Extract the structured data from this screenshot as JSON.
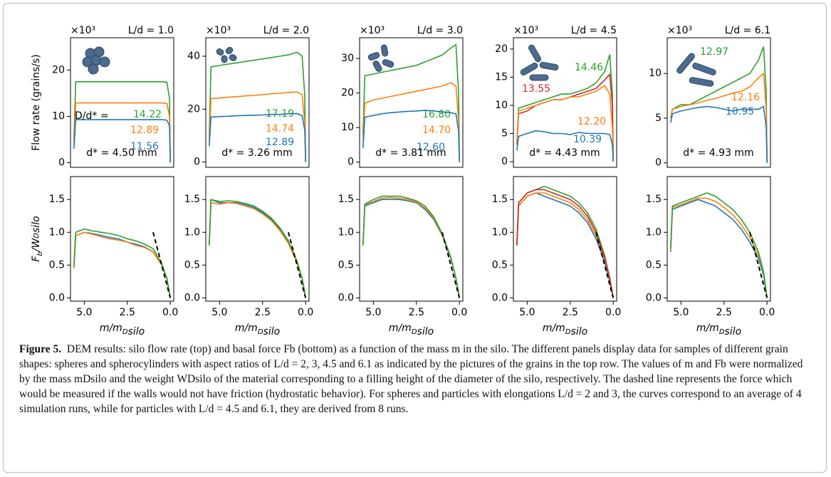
{
  "chart_data": [
    {
      "type": "line",
      "title": "L/d = 1.0",
      "scale_note": "×10³",
      "ylabel": [
        "Flow rate (grains/s)"
      ],
      "x": [
        5.6,
        5.5,
        5.0,
        4.5,
        4.0,
        3.5,
        3.0,
        2.5,
        2.0,
        1.5,
        1.0,
        0.5,
        0.2,
        0.05,
        0
      ],
      "xlim": [
        5.8,
        -0.2
      ],
      "ylim": [
        -1,
        27
      ],
      "yticks": [
        0,
        10,
        20
      ],
      "series": [
        {
          "color": "#2ca02c",
          "label": "14.22",
          "values": [
            5,
            17.5,
            17.5,
            17.5,
            17.5,
            17.5,
            17.5,
            17.5,
            17.5,
            17.5,
            17.5,
            17.5,
            17.4,
            14,
            0
          ]
        },
        {
          "color": "#ff7f0e",
          "label": "12.89",
          "values": [
            4,
            12.9,
            12.9,
            12.9,
            12.9,
            12.9,
            12.9,
            12.9,
            12.9,
            12.9,
            12.9,
            12.9,
            12.8,
            10,
            0
          ]
        },
        {
          "color": "#1f77b4",
          "label": "11.56",
          "values": [
            3,
            9.3,
            9.3,
            9.3,
            9.3,
            9.3,
            9.3,
            9.3,
            9.3,
            9.3,
            9.3,
            9.3,
            9.2,
            8,
            0
          ]
        }
      ],
      "annotations": [
        "D/d* =",
        "d* = 4.50 mm"
      ]
    },
    {
      "type": "line",
      "title": "L/d = 2.0",
      "scale_note": "×10³",
      "x": [
        5.6,
        5.5,
        5.0,
        4.5,
        4.0,
        3.5,
        3.0,
        2.5,
        2.0,
        1.5,
        1.0,
        0.5,
        0.2,
        0.05,
        0
      ],
      "xlim": [
        5.8,
        -0.2
      ],
      "ylim": [
        -2,
        47
      ],
      "yticks": [
        0,
        20,
        40
      ],
      "series": [
        {
          "color": "#2ca02c",
          "label": "17.19",
          "values": [
            10,
            36,
            36.5,
            37,
            37.5,
            38,
            38.5,
            39,
            39.5,
            40,
            40.5,
            41.5,
            40,
            25,
            0
          ]
        },
        {
          "color": "#ff7f0e",
          "label": "14.74",
          "values": [
            8,
            24,
            24.2,
            24.5,
            24.7,
            25,
            25.2,
            25.5,
            25.8,
            26,
            26.3,
            26.5,
            25.5,
            15,
            0
          ]
        },
        {
          "color": "#1f77b4",
          "label": "12.89",
          "values": [
            6,
            17,
            17.2,
            17.3,
            17.5,
            17.6,
            17.7,
            17.8,
            18,
            18,
            18.2,
            18.3,
            17.5,
            12,
            0
          ]
        }
      ],
      "annotations": [
        "d* = 3.26 mm"
      ]
    },
    {
      "type": "line",
      "title": "L/d = 3.0",
      "scale_note": "×10³",
      "x": [
        5.6,
        5.5,
        5.0,
        4.5,
        4.0,
        3.5,
        3.0,
        2.5,
        2.0,
        1.5,
        1.0,
        0.5,
        0.2,
        0.05,
        0
      ],
      "xlim": [
        5.8,
        -0.2
      ],
      "ylim": [
        -1.5,
        36
      ],
      "yticks": [
        0,
        10,
        20,
        30
      ],
      "series": [
        {
          "color": "#2ca02c",
          "label": "16.80",
          "values": [
            8,
            25,
            25.5,
            26,
            26.5,
            27,
            27.5,
            28,
            29,
            30,
            31,
            33,
            34,
            20,
            0
          ]
        },
        {
          "color": "#ff7f0e",
          "label": "14.70",
          "values": [
            6,
            17,
            18,
            18.5,
            19,
            19.5,
            20,
            20.5,
            21,
            21.5,
            22,
            23,
            22,
            12,
            0
          ]
        },
        {
          "color": "#1f77b4",
          "label": "12.60",
          "values": [
            4,
            13,
            13.5,
            14,
            14.3,
            14.5,
            14.7,
            14.8,
            15,
            14.8,
            14.5,
            14.3,
            14,
            9,
            0
          ]
        }
      ],
      "annotations": [
        "d* = 3.81 mm"
      ]
    },
    {
      "type": "line",
      "title": "L/d = 4.5",
      "scale_note": "×10³",
      "x": [
        5.6,
        5.5,
        5.0,
        4.5,
        4.0,
        3.5,
        3.0,
        2.5,
        2.0,
        1.5,
        1.0,
        0.5,
        0.2,
        0.05,
        0
      ],
      "xlim": [
        5.8,
        -0.2
      ],
      "ylim": [
        -1,
        22
      ],
      "yticks": [
        0,
        5,
        10,
        15,
        20
      ],
      "series": [
        {
          "color": "#2ca02c",
          "label": "14.46",
          "values": [
            3,
            9.5,
            10,
            10.5,
            11,
            11.5,
            12,
            12,
            12.5,
            13,
            14,
            16,
            19,
            12,
            0
          ]
        },
        {
          "color": "#d62728",
          "label": "13.55",
          "values": [
            3,
            8.5,
            9,
            10,
            10.5,
            11,
            11,
            11.5,
            12,
            12.5,
            13,
            14.5,
            15.5,
            10,
            0
          ]
        },
        {
          "color": "#ff7f0e",
          "label": "12.20",
          "values": [
            3,
            9,
            9.5,
            10,
            10.5,
            11,
            11,
            11.5,
            11.5,
            12,
            12.5,
            13.5,
            12,
            6,
            0
          ]
        },
        {
          "color": "#1f77b4",
          "label": "10.39",
          "values": [
            2,
            4.5,
            5,
            5.5,
            5.3,
            5,
            5,
            4.8,
            5.2,
            5,
            5,
            5,
            4.8,
            3,
            0
          ]
        }
      ],
      "annotations": [
        "d* = 4.43 mm"
      ]
    },
    {
      "type": "line",
      "title": "L/d = 6.1",
      "scale_note": "×10³",
      "x": [
        5.6,
        5.5,
        5.0,
        4.5,
        4.0,
        3.5,
        3.0,
        2.5,
        2.0,
        1.5,
        1.0,
        0.5,
        0.2,
        0.05,
        0
      ],
      "xlim": [
        5.8,
        -0.2
      ],
      "ylim": [
        -0.5,
        14
      ],
      "yticks": [
        0,
        5,
        10
      ],
      "series": [
        {
          "color": "#2ca02c",
          "label": "12.97",
          "values": [
            5,
            6,
            6.5,
            6.5,
            7,
            7.5,
            8,
            8.5,
            9,
            9.5,
            10,
            11.5,
            13,
            8,
            0
          ]
        },
        {
          "color": "#ff7f0e",
          "label": "12.16",
          "values": [
            5,
            6,
            6.3,
            6.5,
            6.7,
            7,
            7.2,
            7.5,
            7.8,
            8,
            8.5,
            9.5,
            10,
            6,
            0
          ]
        },
        {
          "color": "#1f77b4",
          "label": "10.95",
          "values": [
            4.5,
            5.5,
            5.8,
            6,
            6.2,
            6.3,
            6.2,
            6,
            5.8,
            6,
            6,
            6,
            6.3,
            4,
            0
          ]
        }
      ],
      "annotations": [
        "d* = 4.93 mm"
      ]
    },
    {
      "type": "line",
      "ylabel": [
        "F",
        "b",
        "/W",
        "D",
        "silo"
      ],
      "xlabel": [
        "m/m",
        "D",
        "silo"
      ],
      "x": [
        5.6,
        5.5,
        5.0,
        4.5,
        4.0,
        3.5,
        3.0,
        2.5,
        2.0,
        1.5,
        1.0,
        0.5,
        0.2,
        0
      ],
      "xlim": [
        5.8,
        -0.2
      ],
      "xticks": [
        {
          "value": 5.0,
          "label": "5.0"
        },
        2.5,
        {
          "value": 0,
          "label": "0.0"
        }
      ],
      "ylim": [
        -0.05,
        1.85
      ],
      "yticks": [
        {
          "value": 0,
          "label": "0.0"
        },
        0.5,
        {
          "value": 1,
          "label": "1.0"
        },
        1.5
      ],
      "hydrostatic": {
        "x": [
          1,
          0
        ],
        "y": [
          1,
          0
        ]
      },
      "series": [
        {
          "color": "#1f77b4",
          "values": [
            0.45,
            0.95,
            1.0,
            0.98,
            0.95,
            0.92,
            0.9,
            0.85,
            0.82,
            0.78,
            0.7,
            0.5,
            0.3,
            0
          ]
        },
        {
          "color": "#ff7f0e",
          "values": [
            0.45,
            0.95,
            1.0,
            0.97,
            0.93,
            0.9,
            0.88,
            0.85,
            0.8,
            0.77,
            0.7,
            0.5,
            0.3,
            0
          ]
        },
        {
          "color": "#2ca02c",
          "values": [
            0.5,
            1.0,
            1.05,
            1.02,
            1.0,
            0.98,
            0.95,
            0.9,
            0.87,
            0.82,
            0.75,
            0.52,
            0.3,
            0
          ]
        }
      ]
    },
    {
      "type": "line",
      "xlabel": [
        "m/m",
        "D",
        "silo"
      ],
      "x": [
        5.6,
        5.5,
        5.0,
        4.5,
        4.0,
        3.5,
        3.0,
        2.5,
        2.0,
        1.5,
        1.0,
        0.5,
        0.2,
        0
      ],
      "xlim": [
        5.8,
        -0.2
      ],
      "xticks": [
        {
          "value": 5.0,
          "label": "5.0"
        },
        2.5,
        {
          "value": 0,
          "label": "0.0"
        }
      ],
      "ylim": [
        -0.05,
        1.85
      ],
      "yticks": [
        {
          "value": 0,
          "label": "0.0"
        },
        0.5,
        {
          "value": 1,
          "label": "1.0"
        },
        1.5
      ],
      "hydrostatic": {
        "x": [
          1,
          0
        ],
        "y": [
          1,
          0
        ]
      },
      "series": [
        {
          "color": "#1f77b4",
          "values": [
            0.8,
            1.5,
            1.45,
            1.45,
            1.45,
            1.42,
            1.38,
            1.3,
            1.2,
            1.05,
            0.85,
            0.55,
            0.3,
            0
          ]
        },
        {
          "color": "#ff7f0e",
          "values": [
            0.8,
            1.45,
            1.43,
            1.45,
            1.44,
            1.4,
            1.36,
            1.28,
            1.18,
            1.03,
            0.83,
            0.54,
            0.3,
            0
          ]
        },
        {
          "color": "#2ca02c",
          "values": [
            0.8,
            1.5,
            1.47,
            1.48,
            1.47,
            1.44,
            1.4,
            1.32,
            1.22,
            1.07,
            0.87,
            0.56,
            0.3,
            0
          ]
        }
      ]
    },
    {
      "type": "line",
      "xlabel": [
        "m/m",
        "D",
        "silo"
      ],
      "x": [
        5.6,
        5.5,
        5.0,
        4.5,
        4.0,
        3.5,
        3.0,
        2.5,
        2.0,
        1.5,
        1.0,
        0.5,
        0.2,
        0
      ],
      "xlim": [
        5.8,
        -0.2
      ],
      "xticks": [
        {
          "value": 5.0,
          "label": "5.0"
        },
        2.5,
        {
          "value": 0,
          "label": "0.0"
        }
      ],
      "ylim": [
        -0.05,
        1.85
      ],
      "yticks": [
        {
          "value": 0,
          "label": "0.0"
        },
        0.5,
        {
          "value": 1,
          "label": "1.0"
        },
        1.5
      ],
      "hydrostatic": {
        "x": [
          1,
          0
        ],
        "y": [
          1,
          0
        ]
      },
      "series": [
        {
          "color": "#1f77b4",
          "values": [
            0.8,
            1.4,
            1.45,
            1.5,
            1.5,
            1.5,
            1.48,
            1.45,
            1.35,
            1.2,
            0.95,
            0.6,
            0.3,
            0
          ]
        },
        {
          "color": "#ff7f0e",
          "values": [
            0.8,
            1.42,
            1.47,
            1.52,
            1.53,
            1.52,
            1.5,
            1.46,
            1.37,
            1.22,
            0.96,
            0.61,
            0.3,
            0
          ]
        },
        {
          "color": "#2ca02c",
          "values": [
            0.8,
            1.43,
            1.5,
            1.55,
            1.55,
            1.55,
            1.52,
            1.48,
            1.4,
            1.24,
            0.98,
            0.62,
            0.3,
            0
          ]
        }
      ]
    },
    {
      "type": "line",
      "xlabel": [
        "m/m",
        "D",
        "silo"
      ],
      "x": [
        5.6,
        5.5,
        5.0,
        4.5,
        4.0,
        3.5,
        3.0,
        2.5,
        2.0,
        1.5,
        1.0,
        0.5,
        0.2,
        0
      ],
      "xlim": [
        5.8,
        -0.2
      ],
      "xticks": [
        {
          "value": 5.0,
          "label": "5.0"
        },
        2.5,
        {
          "value": 0,
          "label": "0.0"
        }
      ],
      "ylim": [
        -0.05,
        1.85
      ],
      "yticks": [
        {
          "value": 0,
          "label": "0.0"
        },
        0.5,
        {
          "value": 1,
          "label": "1.0"
        },
        1.5
      ],
      "hydrostatic": {
        "x": [
          1,
          0
        ],
        "y": [
          1,
          0
        ]
      },
      "series": [
        {
          "color": "#1f77b4",
          "values": [
            0.8,
            1.4,
            1.55,
            1.6,
            1.55,
            1.5,
            1.45,
            1.4,
            1.3,
            1.15,
            0.9,
            0.55,
            0.25,
            0
          ]
        },
        {
          "color": "#ff7f0e",
          "values": [
            0.8,
            1.4,
            1.55,
            1.6,
            1.6,
            1.55,
            1.5,
            1.45,
            1.35,
            1.2,
            0.95,
            0.6,
            0.3,
            0
          ]
        },
        {
          "color": "#2ca02c",
          "values": [
            0.8,
            1.45,
            1.6,
            1.65,
            1.7,
            1.65,
            1.6,
            1.55,
            1.45,
            1.3,
            1.05,
            0.65,
            0.3,
            0
          ]
        },
        {
          "color": "#d62728",
          "values": [
            0.8,
            1.45,
            1.6,
            1.65,
            1.65,
            1.6,
            1.55,
            1.5,
            1.4,
            1.25,
            1.0,
            0.62,
            0.3,
            0
          ]
        }
      ]
    },
    {
      "type": "line",
      "xlabel": [
        "m/m",
        "D",
        "silo"
      ],
      "x": [
        5.6,
        5.5,
        5.0,
        4.5,
        4.0,
        3.5,
        3.0,
        2.5,
        2.0,
        1.5,
        1.0,
        0.5,
        0.2,
        0
      ],
      "xlim": [
        5.8,
        -0.2
      ],
      "xticks": [
        {
          "value": 5.0,
          "label": "5.0"
        },
        2.5,
        {
          "value": 0,
          "label": "0.0"
        }
      ],
      "ylim": [
        -0.05,
        1.85
      ],
      "yticks": [
        {
          "value": 0,
          "label": "0.0"
        },
        0.5,
        {
          "value": 1,
          "label": "1.0"
        },
        1.5
      ],
      "hydrostatic": {
        "x": [
          1,
          0
        ],
        "y": [
          1,
          0
        ]
      },
      "series": [
        {
          "color": "#1f77b4",
          "values": [
            0.7,
            1.35,
            1.4,
            1.45,
            1.5,
            1.45,
            1.4,
            1.3,
            1.2,
            1.05,
            0.85,
            0.6,
            0.35,
            0
          ]
        },
        {
          "color": "#ff7f0e",
          "values": [
            0.72,
            1.38,
            1.42,
            1.47,
            1.52,
            1.52,
            1.47,
            1.38,
            1.27,
            1.12,
            0.92,
            0.65,
            0.38,
            0
          ]
        },
        {
          "color": "#2ca02c",
          "values": [
            0.75,
            1.4,
            1.45,
            1.5,
            1.55,
            1.6,
            1.55,
            1.45,
            1.35,
            1.2,
            1.0,
            0.7,
            0.4,
            0
          ]
        }
      ]
    }
  ],
  "caption": {
    "label": "Figure 5.",
    "text": "DEM results: silo flow rate (top) and basal force Fb (bottom) as a function of the mass m in the silo. The different panels display data for samples of different grain shapes: spheres and spherocylinders with aspect ratios of L/d = 2, 3, 4.5 and 6.1 as indicated by the pictures of the grains in the top row. The values of m and Fb were normalized by the mass mDsilo and the weight WDsilo of the material corresponding to a filling height of the diameter of the silo, respectively. The dashed line represents the force which would be measured if the walls would not have friction (hydrostatic behavior). For spheres and particles with elongations L/d = 2 and 3, the curves correspond to an average of 4 simulation runs, while for particles with L/d = 4.5 and 6.1, they are derived from 8 runs."
  }
}
